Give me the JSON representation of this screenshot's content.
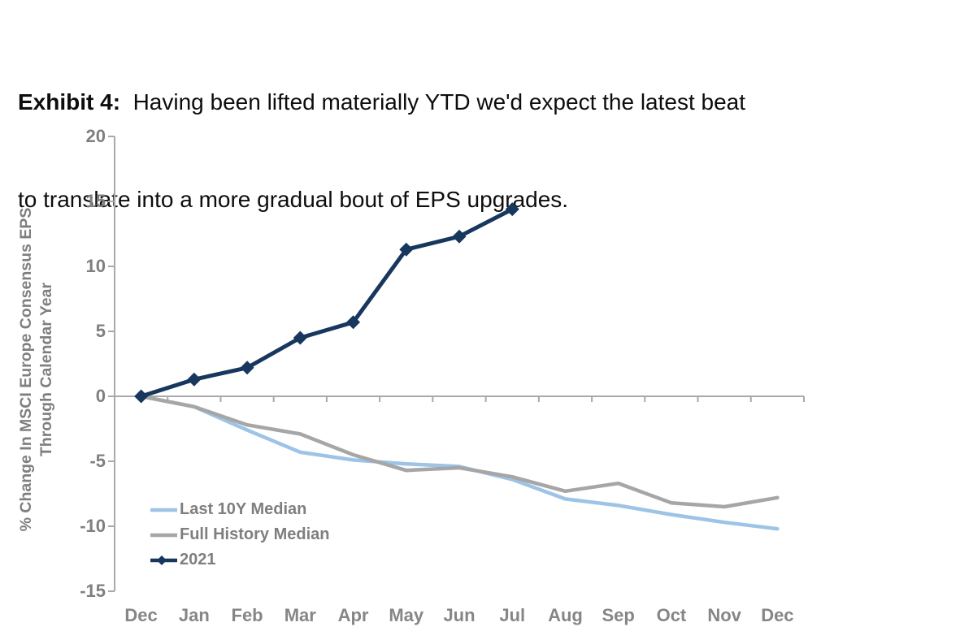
{
  "title": {
    "prefix": "Exhibit 4:",
    "line1": "  Having been lifted materially YTD we'd expect the latest beat",
    "line2": "to translate into a more gradual bout of EPS upgrades."
  },
  "chart_data": {
    "type": "line",
    "title": "",
    "xlabel": "",
    "ylabel_line1": "% Change In MSCI Europe Consensus EPS",
    "ylabel_line2": "Through Calendar Year",
    "categories": [
      "Dec",
      "Jan",
      "Feb",
      "Mar",
      "Apr",
      "May",
      "Jun",
      "Jul",
      "Aug",
      "Sep",
      "Oct",
      "Nov",
      "Dec"
    ],
    "y_ticks": [
      20,
      15,
      10,
      5,
      0,
      -5,
      -10,
      -15
    ],
    "ylim": [
      -15,
      20
    ],
    "grid": false,
    "legend_position": "inside-bottom-left",
    "series": [
      {
        "name": "Last 10Y Median",
        "color": "#9DC3E6",
        "marker": "none",
        "values": [
          0,
          -0.8,
          -2.6,
          -4.3,
          -4.9,
          -5.2,
          -5.4,
          -6.4,
          -7.9,
          -8.4,
          -9.1,
          -9.7,
          -10.2
        ]
      },
      {
        "name": "Full History Median",
        "color": "#A6A6A6",
        "marker": "none",
        "values": [
          0,
          -0.8,
          -2.2,
          -2.9,
          -4.5,
          -5.7,
          -5.5,
          -6.2,
          -7.3,
          -6.7,
          -8.2,
          -8.5,
          -7.8
        ]
      },
      {
        "name": "2021",
        "color": "#17375E",
        "marker": "diamond",
        "values": [
          0,
          1.3,
          2.2,
          4.5,
          5.7,
          11.3,
          12.3,
          14.4,
          null,
          null,
          null,
          null,
          null
        ]
      }
    ],
    "axis_color": "#A9A9A9",
    "label_color": "#7f7f7f"
  }
}
